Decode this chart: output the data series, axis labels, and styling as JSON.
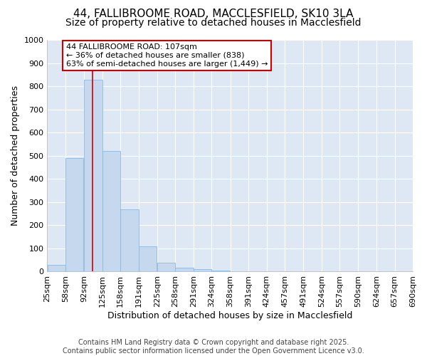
{
  "title_line1": "44, FALLIBROOME ROAD, MACCLESFIELD, SK10 3LA",
  "title_line2": "Size of property relative to detached houses in Macclesfield",
  "xlabel": "Distribution of detached houses by size in Macclesfield",
  "ylabel": "Number of detached properties",
  "bin_edges": [
    25,
    58,
    92,
    125,
    158,
    191,
    225,
    258,
    291,
    324,
    358,
    391,
    424,
    457,
    491,
    524,
    557,
    590,
    624,
    657,
    690
  ],
  "bar_heights": [
    30,
    490,
    830,
    520,
    270,
    108,
    38,
    18,
    10,
    3,
    0,
    0,
    0,
    0,
    0,
    0,
    0,
    0,
    0,
    0
  ],
  "bar_color": "#c5d8ee",
  "bar_edgecolor": "#8fb8dc",
  "vline_x": 107,
  "vline_color": "#cc0000",
  "annotation_text": "44 FALLIBROOME ROAD: 107sqm\n← 36% of detached houses are smaller (838)\n63% of semi-detached houses are larger (1,449) →",
  "annotation_box_facecolor": "#ffffff",
  "annotation_box_edgecolor": "#cc0000",
  "ylim": [
    0,
    1000
  ],
  "yticks": [
    0,
    100,
    200,
    300,
    400,
    500,
    600,
    700,
    800,
    900,
    1000
  ],
  "tick_labels": [
    "25sqm",
    "58sqm",
    "92sqm",
    "125sqm",
    "158sqm",
    "191sqm",
    "225sqm",
    "258sqm",
    "291sqm",
    "324sqm",
    "358sqm",
    "391sqm",
    "424sqm",
    "457sqm",
    "491sqm",
    "524sqm",
    "557sqm",
    "590sqm",
    "624sqm",
    "657sqm",
    "690sqm"
  ],
  "footer_text": "Contains HM Land Registry data © Crown copyright and database right 2025.\nContains public sector information licensed under the Open Government Licence v3.0.",
  "fig_background_color": "#ffffff",
  "plot_bg_color": "#dde8f4",
  "grid_color": "#ffffff",
  "title1_fontsize": 11,
  "title2_fontsize": 10,
  "axis_label_fontsize": 9,
  "tick_fontsize": 8,
  "footer_fontsize": 7,
  "annot_fontsize": 8
}
